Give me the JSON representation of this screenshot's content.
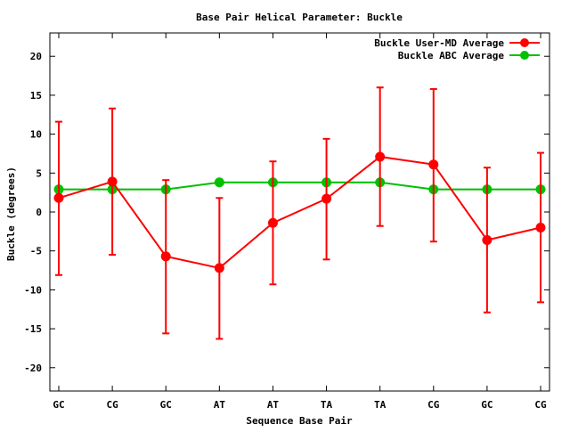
{
  "chart_data": {
    "type": "line",
    "title": "Base Pair Helical Parameter: Buckle",
    "xlabel": "Sequence Base Pair",
    "ylabel": "Buckle (degrees)",
    "categories": [
      "GC",
      "CG",
      "GC",
      "AT",
      "AT",
      "TA",
      "TA",
      "CG",
      "GC",
      "CG"
    ],
    "ylim": [
      -23,
      23
    ],
    "yticks": [
      -20,
      -15,
      -10,
      -5,
      0,
      5,
      10,
      15,
      20
    ],
    "grid": false,
    "legend_position": "top-right",
    "series": [
      {
        "name": "Buckle User-MD Average",
        "color": "#ff0000",
        "values": [
          1.8,
          3.9,
          -5.7,
          -7.2,
          -1.4,
          1.7,
          7.1,
          6.1,
          -3.6,
          -2.0
        ],
        "error_low": [
          -8.1,
          -5.5,
          -15.6,
          -16.3,
          -9.3,
          -6.1,
          -1.8,
          -3.8,
          -12.9,
          -11.6
        ],
        "error_high": [
          11.6,
          13.3,
          4.1,
          1.8,
          6.5,
          9.4,
          16.0,
          15.8,
          5.7,
          7.6
        ]
      },
      {
        "name": "Buckle ABC Average",
        "color": "#00c000",
        "values": [
          2.9,
          2.9,
          2.9,
          3.8,
          3.8,
          3.8,
          3.8,
          2.9,
          2.9,
          2.9
        ]
      }
    ]
  }
}
